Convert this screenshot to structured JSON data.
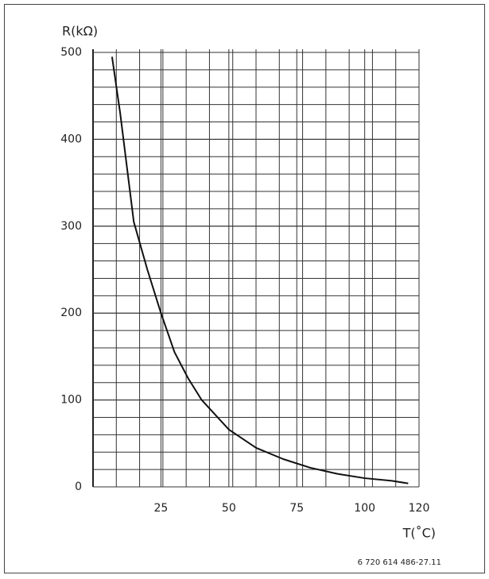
{
  "chart_data": {
    "type": "line",
    "y_label": "R(kΩ)",
    "x_label": "T(˚C)",
    "footnote": "6 720 614 486-27.11",
    "x": [
      7,
      10,
      15,
      20,
      25,
      30,
      35,
      40,
      50,
      60,
      70,
      80,
      90,
      100,
      110,
      116
    ],
    "series": [
      {
        "color": "#111111",
        "values": [
          495,
          430,
          305,
          250,
          200,
          155,
          125,
          100,
          66,
          45,
          32,
          22,
          15,
          10,
          7,
          4
        ]
      }
    ],
    "xlim": [
      0,
      120
    ],
    "xticks": [
      25,
      50,
      75,
      100,
      120
    ],
    "ylim": [
      0,
      500
    ],
    "yticks": [
      0,
      100,
      200,
      300,
      400,
      500
    ],
    "grid": true
  }
}
